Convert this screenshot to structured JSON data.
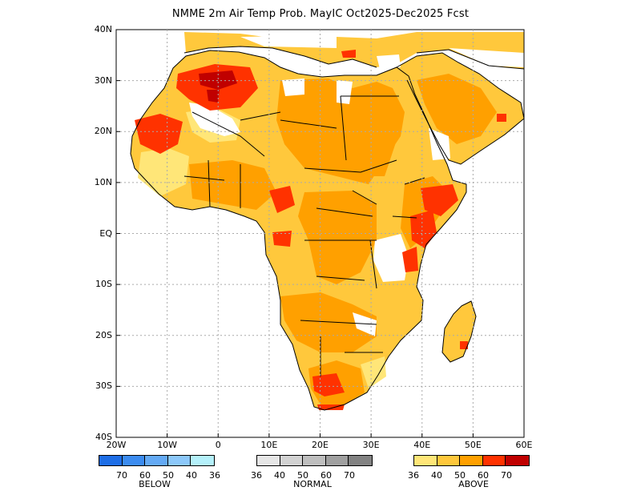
{
  "title": "NMME 2m Air Temp Prob. MayIC  Oct2025-Dec2025 Fcst",
  "map": {
    "lat_labels": [
      "40N",
      "30N",
      "20N",
      "10N",
      "EQ",
      "10S",
      "20S",
      "30S",
      "40S"
    ],
    "lon_labels": [
      "20W",
      "10W",
      "0",
      "10E",
      "20E",
      "30E",
      "40E",
      "50E",
      "60E"
    ],
    "extent": {
      "lon_min": -20,
      "lon_max": 60,
      "lat_min": -40,
      "lat_max": 40
    }
  },
  "legend": {
    "below": {
      "name": "BELOW",
      "colors": [
        "#1e6ee6",
        "#3c8cf0",
        "#64aaf5",
        "#8cc8fa",
        "#b4f0fa"
      ],
      "ticks": [
        "70",
        "60",
        "50",
        "40",
        "36"
      ]
    },
    "normal": {
      "name": "NORMAL",
      "colors": [
        "#e6e6e6",
        "#d2d2d2",
        "#bebebe",
        "#a0a0a0",
        "#828282"
      ],
      "ticks": [
        "36",
        "40",
        "50",
        "60",
        "70"
      ]
    },
    "above": {
      "name": "ABOVE",
      "colors": [
        "#ffe678",
        "#ffc83c",
        "#ffa000",
        "#ff3200",
        "#c00000"
      ],
      "ticks": [
        "36",
        "40",
        "50",
        "60",
        "70"
      ]
    }
  }
}
